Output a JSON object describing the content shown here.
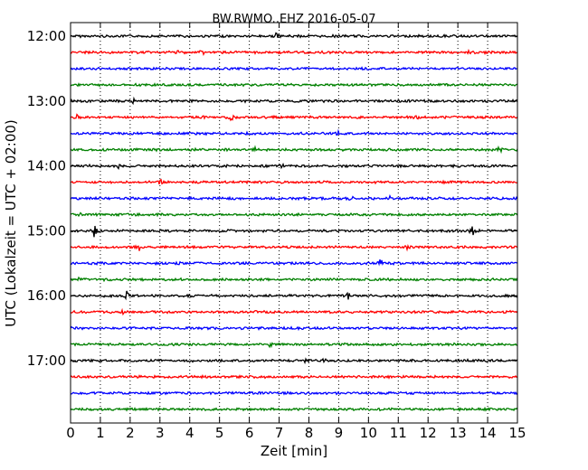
{
  "chart_data": {
    "type": "line",
    "title": "BW.RWMO..EHZ 2016-05-07",
    "xlabel": "Zeit  [min]",
    "ylabel": "UTC (Lokalzeit = UTC + 02:00)",
    "xlim": [
      0,
      15
    ],
    "x_ticks": [
      "0",
      "1",
      "2",
      "3",
      "4",
      "5",
      "6",
      "7",
      "8",
      "9",
      "10",
      "11",
      "12",
      "13",
      "14",
      "15"
    ],
    "y_ticks": [
      {
        "label": "12:00",
        "row": 0
      },
      {
        "label": "13:00",
        "row": 4
      },
      {
        "label": "14:00",
        "row": 8
      },
      {
        "label": "15:00",
        "row": 12
      },
      {
        "label": "16:00",
        "row": 16
      },
      {
        "label": "17:00",
        "row": 20
      }
    ],
    "grid": "vertical dotted at each minute",
    "trace_colors": [
      "#000000",
      "#ff0000",
      "#0000ff",
      "#008000"
    ],
    "rows": [
      {
        "start": "12:00",
        "events": [
          {
            "x": 6.9,
            "amp": 0.35
          }
        ]
      },
      {
        "start": "12:15",
        "events": [
          {
            "x": 3.6,
            "amp": 0.3
          },
          {
            "x": 4.4,
            "amp": 0.45
          },
          {
            "x": 13.4,
            "amp": 0.3
          }
        ]
      },
      {
        "start": "12:30",
        "events": []
      },
      {
        "start": "12:45",
        "events": []
      },
      {
        "start": "13:00",
        "events": [
          {
            "x": 2.1,
            "amp": 0.3
          }
        ]
      },
      {
        "start": "13:15",
        "events": [
          {
            "x": 0.2,
            "amp": 0.3
          },
          {
            "x": 4.5,
            "amp": 0.3
          },
          {
            "x": 5.4,
            "amp": 0.55
          },
          {
            "x": 11.6,
            "amp": 0.3
          }
        ]
      },
      {
        "start": "13:30",
        "events": [
          {
            "x": 9.0,
            "amp": 0.25
          }
        ]
      },
      {
        "start": "13:45",
        "events": [
          {
            "x": 6.2,
            "amp": 0.3
          },
          {
            "x": 14.4,
            "amp": 0.4
          }
        ]
      },
      {
        "start": "14:00",
        "events": [
          {
            "x": 1.6,
            "amp": 0.35
          },
          {
            "x": 7.1,
            "amp": 0.3
          }
        ]
      },
      {
        "start": "14:15",
        "events": [
          {
            "x": 3.0,
            "amp": 0.4
          }
        ]
      },
      {
        "start": "14:30",
        "events": [
          {
            "x": 9.4,
            "amp": 0.35
          },
          {
            "x": 10.7,
            "amp": 0.3
          }
        ]
      },
      {
        "start": "14:45",
        "events": [
          {
            "x": 0.3,
            "amp": 0.3
          }
        ]
      },
      {
        "start": "15:00",
        "events": [
          {
            "x": 0.8,
            "amp": 0.8
          },
          {
            "x": 13.5,
            "amp": 1.1
          }
        ]
      },
      {
        "start": "15:15",
        "events": [
          {
            "x": 2.3,
            "amp": 0.55
          },
          {
            "x": 11.3,
            "amp": 0.4
          }
        ]
      },
      {
        "start": "15:30",
        "events": [
          {
            "x": 3.6,
            "amp": 0.3
          },
          {
            "x": 10.4,
            "amp": 0.7
          }
        ]
      },
      {
        "start": "15:45",
        "events": [
          {
            "x": 0.3,
            "amp": 0.25
          }
        ]
      },
      {
        "start": "16:00",
        "events": [
          {
            "x": 1.9,
            "amp": 0.6
          },
          {
            "x": 9.3,
            "amp": 0.6
          }
        ]
      },
      {
        "start": "16:15",
        "events": [
          {
            "x": 1.8,
            "amp": 0.35
          }
        ]
      },
      {
        "start": "16:30",
        "events": []
      },
      {
        "start": "16:45",
        "events": [
          {
            "x": 6.7,
            "amp": 0.3
          }
        ]
      },
      {
        "start": "17:00",
        "events": [
          {
            "x": 7.9,
            "amp": 0.45
          },
          {
            "x": 8.5,
            "amp": 0.3
          }
        ]
      },
      {
        "start": "17:15",
        "events": []
      },
      {
        "start": "17:30",
        "events": []
      },
      {
        "start": "17:45",
        "events": []
      }
    ]
  }
}
